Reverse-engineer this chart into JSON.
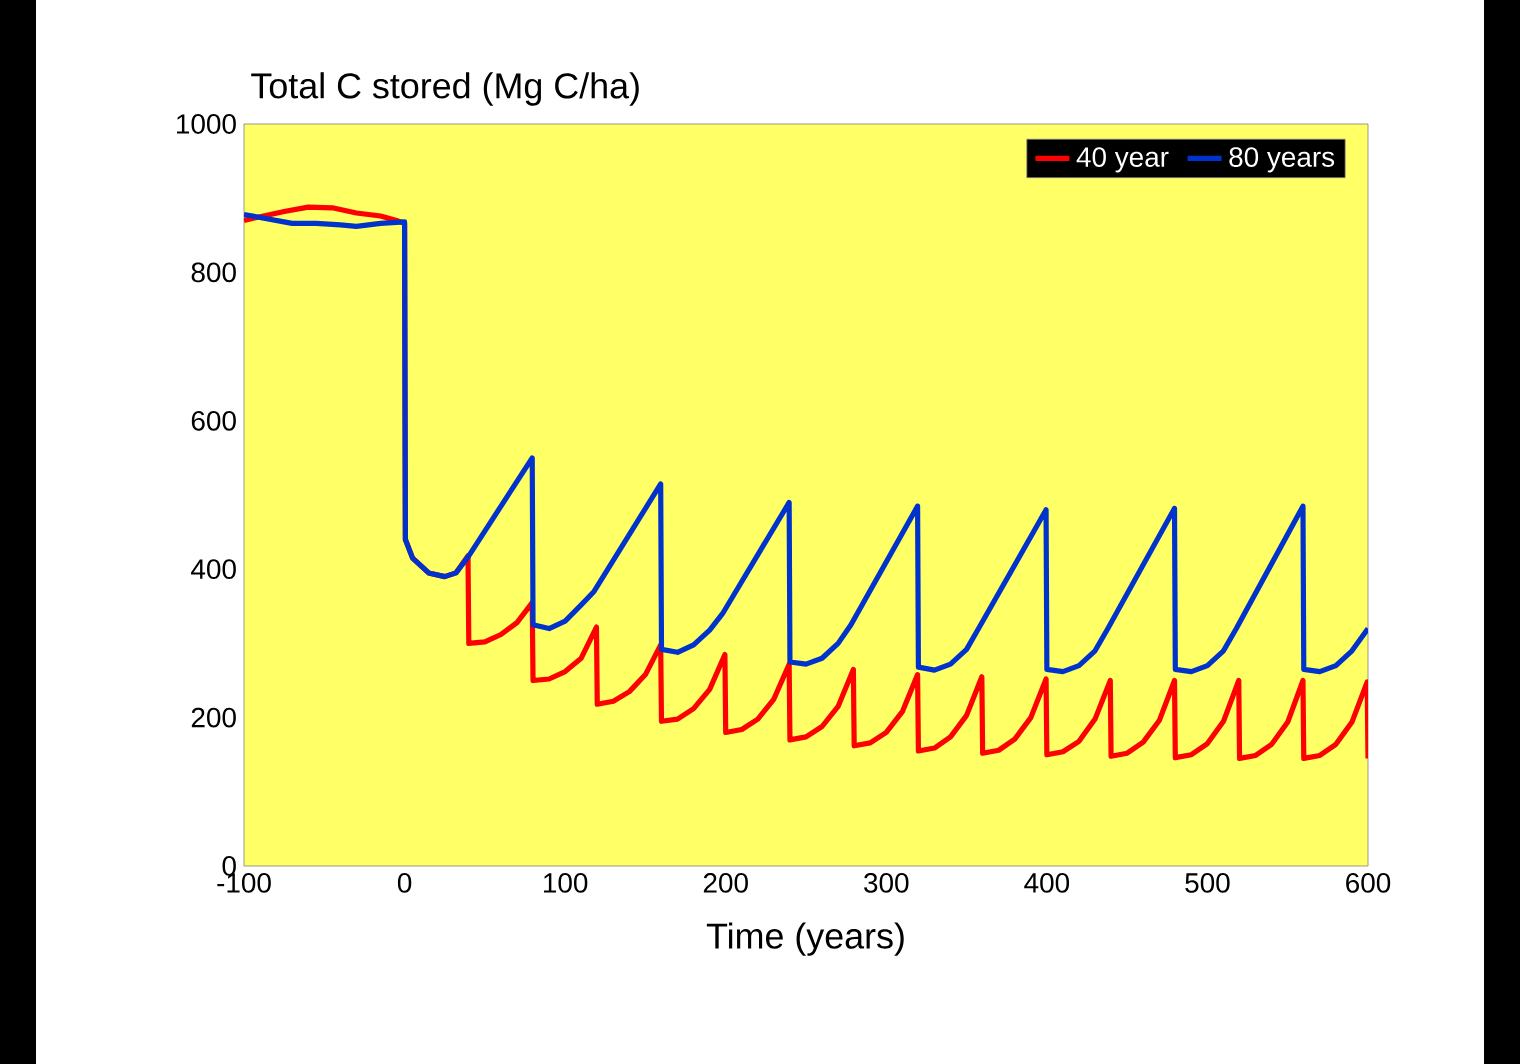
{
  "chart_data": {
    "type": "line",
    "title": "Total C stored (Mg C/ha)",
    "xlabel": "Time (years)",
    "xlim": [
      -100,
      600
    ],
    "ylim": [
      0,
      1000
    ],
    "xticks": [
      -100,
      0,
      100,
      200,
      300,
      400,
      500,
      600
    ],
    "yticks": [
      0,
      200,
      400,
      600,
      800,
      1000
    ],
    "grid": false,
    "legend": "top right",
    "marker": "none",
    "line_style": "solid",
    "series": [
      {
        "name": "40 year",
        "color": "#ff0000",
        "x": [
          -100,
          -90,
          -75,
          -60,
          -45,
          -30,
          -15,
          -5,
          0,
          0.5,
          5,
          15,
          25,
          32,
          39.5,
          40,
          50,
          60,
          70,
          79.5,
          80,
          90,
          100,
          110,
          119.5,
          120,
          130,
          140,
          150,
          159.5,
          160,
          170,
          180,
          190,
          199.5,
          200,
          210,
          220,
          230,
          239.5,
          240,
          250,
          260,
          270,
          279.5,
          280,
          290,
          300,
          310,
          319.5,
          320,
          330,
          340,
          350,
          359.5,
          360,
          370,
          380,
          390,
          399.5,
          400,
          410,
          420,
          430,
          439.5,
          440,
          450,
          460,
          470,
          479.5,
          480,
          490,
          500,
          510,
          519.5,
          520,
          530,
          540,
          550,
          559.5,
          560,
          570,
          580,
          590,
          599.5,
          600
        ],
        "values": [
          870,
          875,
          882,
          888,
          887,
          880,
          876,
          870,
          866,
          440,
          415,
          395,
          390,
          395,
          418,
          300,
          302,
          312,
          328,
          355,
          250,
          252,
          262,
          280,
          322,
          218,
          222,
          235,
          258,
          298,
          195,
          198,
          212,
          238,
          285,
          180,
          184,
          198,
          225,
          272,
          170,
          174,
          188,
          215,
          265,
          162,
          166,
          180,
          208,
          258,
          155,
          159,
          174,
          203,
          255,
          152,
          156,
          171,
          200,
          252,
          150,
          154,
          168,
          198,
          250,
          148,
          152,
          167,
          196,
          250,
          146,
          150,
          165,
          195,
          250,
          145,
          149,
          164,
          194,
          250,
          145,
          149,
          164,
          194,
          248,
          145
        ]
      },
      {
        "name": "80 years",
        "color": "#0033cc",
        "x": [
          -100,
          -85,
          -70,
          -55,
          -40,
          -30,
          -15,
          0,
          0.5,
          5,
          15,
          25,
          32,
          40,
          79.5,
          80,
          90,
          100,
          110,
          118,
          159.5,
          160,
          170,
          180,
          190,
          198,
          239.5,
          240,
          250,
          260,
          270,
          278,
          319.5,
          320,
          330,
          340,
          350,
          358,
          399.5,
          400,
          410,
          420,
          430,
          438,
          479.5,
          480,
          490,
          500,
          510,
          518,
          559.5,
          560,
          570,
          580,
          590,
          600
        ],
        "values": [
          878,
          872,
          866,
          866,
          864,
          862,
          866,
          868,
          440,
          415,
          395,
          390,
          395,
          418,
          550,
          325,
          320,
          330,
          352,
          370,
          515,
          292,
          288,
          298,
          318,
          340,
          490,
          275,
          272,
          280,
          300,
          325,
          485,
          268,
          264,
          272,
          292,
          322,
          480,
          265,
          262,
          270,
          290,
          320,
          482,
          265,
          262,
          270,
          290,
          320,
          485,
          265,
          262,
          270,
          290,
          320
        ]
      }
    ]
  }
}
